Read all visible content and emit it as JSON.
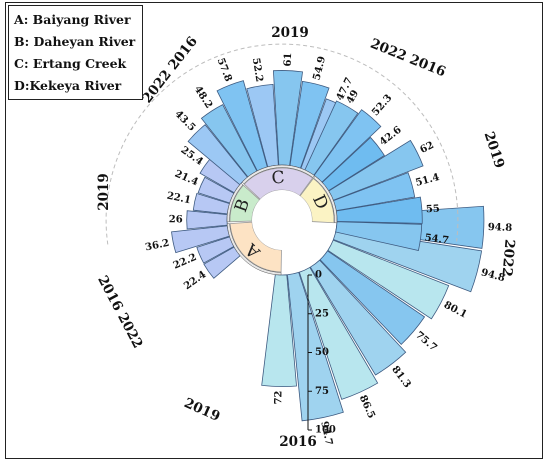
{
  "chart_data": {
    "type": "radial-bar",
    "axis": {
      "ticks": [
        0,
        25,
        50,
        75,
        100
      ],
      "range": [
        0,
        100
      ]
    },
    "legend": [
      {
        "key": "A",
        "label": "A: Baiyang River"
      },
      {
        "key": "B",
        "label": "B: Daheyan River"
      },
      {
        "key": "C",
        "label": "C: Ertang Creek"
      },
      {
        "key": "D",
        "label": "D:Kekeya River"
      }
    ],
    "groups": [
      {
        "key": "A",
        "color": "#fde3c4",
        "bar_colors": [
          "#b8e6ee",
          "#9fd3ef",
          "#b8e6ee",
          "#9fd3ef",
          "#86c6ef",
          "#b8e6ee",
          "#9fd3ef",
          "#86c6ef"
        ],
        "values": [
          72,
          94.7,
          86.5,
          81.3,
          75.7,
          80.1,
          94.8,
          94.8
        ]
      },
      {
        "key": "B",
        "color": "#c9ebcb",
        "bar_colors": [
          "#b7c8f4"
        ],
        "values": [
          22.4,
          22.2,
          36.2,
          26,
          22.1,
          21.4,
          25.4
        ]
      },
      {
        "key": "C",
        "color": "#d8d0ec",
        "bar_colors": [
          "#9cc8f4",
          "#86c6ef",
          "#7fc3f2"
        ],
        "values": [
          43.5,
          48.2,
          57.8,
          52.2,
          61,
          54.9,
          47.7
        ]
      },
      {
        "key": "D",
        "color": "#fbf3c4",
        "bar_colors": [
          "#86c6ef",
          "#7fc3f2",
          "#6fbcf0"
        ],
        "values": [
          49,
          52.3,
          42.6,
          62,
          51.4,
          55,
          54.7
        ]
      }
    ],
    "year_labels": [
      "2016",
      "2019",
      "2016 2022",
      "2019",
      "2022 2016",
      "2019",
      "2022 2016",
      "2019",
      "2022"
    ]
  }
}
